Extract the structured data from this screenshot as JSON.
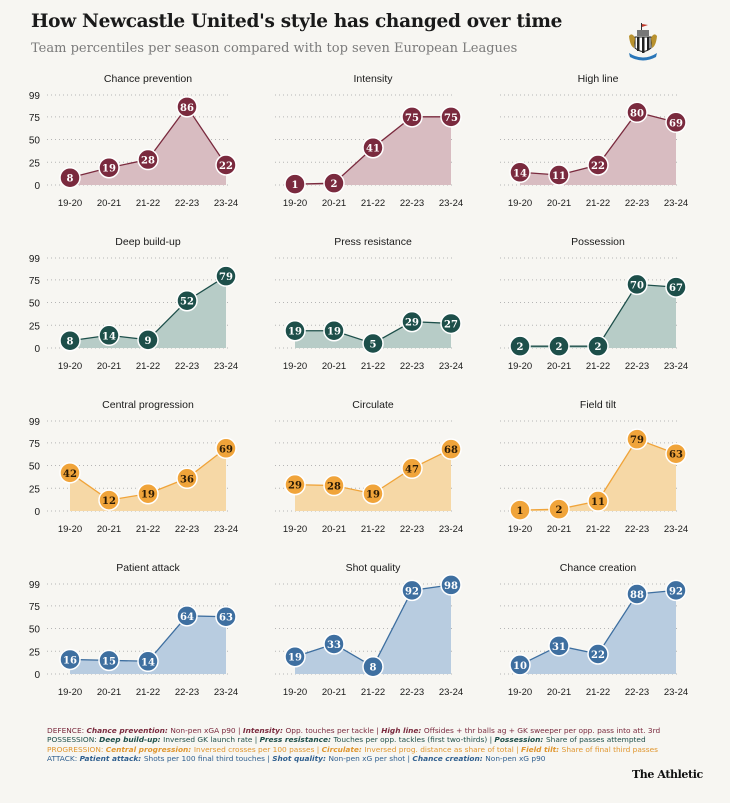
{
  "header": {
    "title": "How Newcastle United's style has changed over time",
    "subtitle": "Team percentiles per season compared with top seven European Leagues"
  },
  "colors": {
    "defence": {
      "line": "#7a2a3e",
      "fill": "#d8bcc1",
      "text": "#ffffff"
    },
    "possession": {
      "line": "#1d4f4a",
      "fill": "#b7ccc7",
      "text": "#ffffff"
    },
    "progression": {
      "line": "#f0a43a",
      "fill": "#f6d8a6",
      "text": "#2a1a05"
    },
    "attack": {
      "line": "#3e6fa0",
      "fill": "#b8cce0",
      "text": "#ffffff"
    }
  },
  "chart_data": [
    {
      "type": "area",
      "title": "Chance prevention",
      "group": "defence",
      "categories": [
        "19-20",
        "20-21",
        "21-22",
        "22-23",
        "23-24"
      ],
      "values": [
        8,
        19,
        28,
        86,
        22
      ],
      "yticks": [
        0,
        25,
        50,
        75,
        99
      ],
      "ylim": [
        0,
        99
      ],
      "grid": true
    },
    {
      "type": "area",
      "title": "Intensity",
      "group": "defence",
      "categories": [
        "19-20",
        "20-21",
        "21-22",
        "22-23",
        "23-24"
      ],
      "values": [
        1,
        2,
        41,
        75,
        75
      ],
      "ylim": [
        0,
        99
      ],
      "grid": true
    },
    {
      "type": "area",
      "title": "High line",
      "group": "defence",
      "categories": [
        "19-20",
        "20-21",
        "21-22",
        "22-23",
        "23-24"
      ],
      "values": [
        14,
        11,
        22,
        80,
        69
      ],
      "ylim": [
        0,
        99
      ],
      "grid": true
    },
    {
      "type": "area",
      "title": "Deep build-up",
      "group": "possession",
      "categories": [
        "19-20",
        "20-21",
        "21-22",
        "22-23",
        "23-24"
      ],
      "values": [
        8,
        14,
        9,
        52,
        79
      ],
      "yticks": [
        0,
        25,
        50,
        75,
        99
      ],
      "ylim": [
        0,
        99
      ],
      "grid": true
    },
    {
      "type": "area",
      "title": "Press resistance",
      "group": "possession",
      "categories": [
        "19-20",
        "20-21",
        "21-22",
        "22-23",
        "23-24"
      ],
      "values": [
        19,
        19,
        5,
        29,
        27
      ],
      "ylim": [
        0,
        99
      ],
      "grid": true
    },
    {
      "type": "area",
      "title": "Possession",
      "group": "possession",
      "categories": [
        "19-20",
        "20-21",
        "21-22",
        "22-23",
        "23-24"
      ],
      "values": [
        2,
        2,
        2,
        70,
        67
      ],
      "ylim": [
        0,
        99
      ],
      "grid": true
    },
    {
      "type": "area",
      "title": "Central progression",
      "group": "progression",
      "categories": [
        "19-20",
        "20-21",
        "21-22",
        "22-23",
        "23-24"
      ],
      "values": [
        42,
        12,
        19,
        36,
        69
      ],
      "yticks": [
        0,
        25,
        50,
        75,
        99
      ],
      "ylim": [
        0,
        99
      ],
      "grid": true
    },
    {
      "type": "area",
      "title": "Circulate",
      "group": "progression",
      "categories": [
        "19-20",
        "20-21",
        "21-22",
        "22-23",
        "23-24"
      ],
      "values": [
        29,
        28,
        19,
        47,
        68
      ],
      "ylim": [
        0,
        99
      ],
      "grid": true
    },
    {
      "type": "area",
      "title": "Field tilt",
      "group": "progression",
      "categories": [
        "19-20",
        "20-21",
        "21-22",
        "22-23",
        "23-24"
      ],
      "values": [
        1,
        2,
        11,
        79,
        63
      ],
      "ylim": [
        0,
        99
      ],
      "grid": true
    },
    {
      "type": "area",
      "title": "Patient attack",
      "group": "attack",
      "categories": [
        "19-20",
        "20-21",
        "21-22",
        "22-23",
        "23-24"
      ],
      "values": [
        16,
        15,
        14,
        64,
        63
      ],
      "yticks": [
        0,
        25,
        50,
        75,
        99
      ],
      "ylim": [
        0,
        99
      ],
      "grid": true
    },
    {
      "type": "area",
      "title": "Shot quality",
      "group": "attack",
      "categories": [
        "19-20",
        "20-21",
        "21-22",
        "22-23",
        "23-24"
      ],
      "values": [
        19,
        33,
        8,
        92,
        98
      ],
      "ylim": [
        0,
        99
      ],
      "grid": true
    },
    {
      "type": "area",
      "title": "Chance creation",
      "group": "attack",
      "categories": [
        "19-20",
        "20-21",
        "21-22",
        "22-23",
        "23-24"
      ],
      "values": [
        10,
        31,
        22,
        88,
        92
      ],
      "ylim": [
        0,
        99
      ],
      "grid": true
    }
  ],
  "footer": {
    "defence": {
      "label": "DEFENCE:",
      "items": [
        [
          "Chance prevention:",
          "Non-pen xGA p90"
        ],
        [
          "Intensity:",
          "Opp. touches per tackle"
        ],
        [
          "High line:",
          "Offsides + thr balls ag + GK sweeper per opp. pass into att. 3rd"
        ]
      ]
    },
    "possession": {
      "label": "POSSESSION:",
      "items": [
        [
          "Deep build-up:",
          "Inversed GK launch rate"
        ],
        [
          "Press resistance:",
          "Touches per opp. tackles (first two-thirds)"
        ],
        [
          "Possession:",
          "Share of passes attempted"
        ]
      ]
    },
    "progression": {
      "label": "PROGRESSION:",
      "items": [
        [
          "Central progression:",
          "Inversed crosses per 100 passes"
        ],
        [
          "Circulate:",
          "Inversed prog. distance as share of total"
        ],
        [
          "Field tilt:",
          "Share of final third passes"
        ]
      ]
    },
    "attack": {
      "label": "ATTACK:",
      "items": [
        [
          "Patient attack:",
          "Shots per 100 final third touches"
        ],
        [
          "Shot quality:",
          "Non-pen xG per shot"
        ],
        [
          "Chance creation:",
          "Non-pen xG p90"
        ]
      ]
    }
  },
  "brand": "The Athletic"
}
